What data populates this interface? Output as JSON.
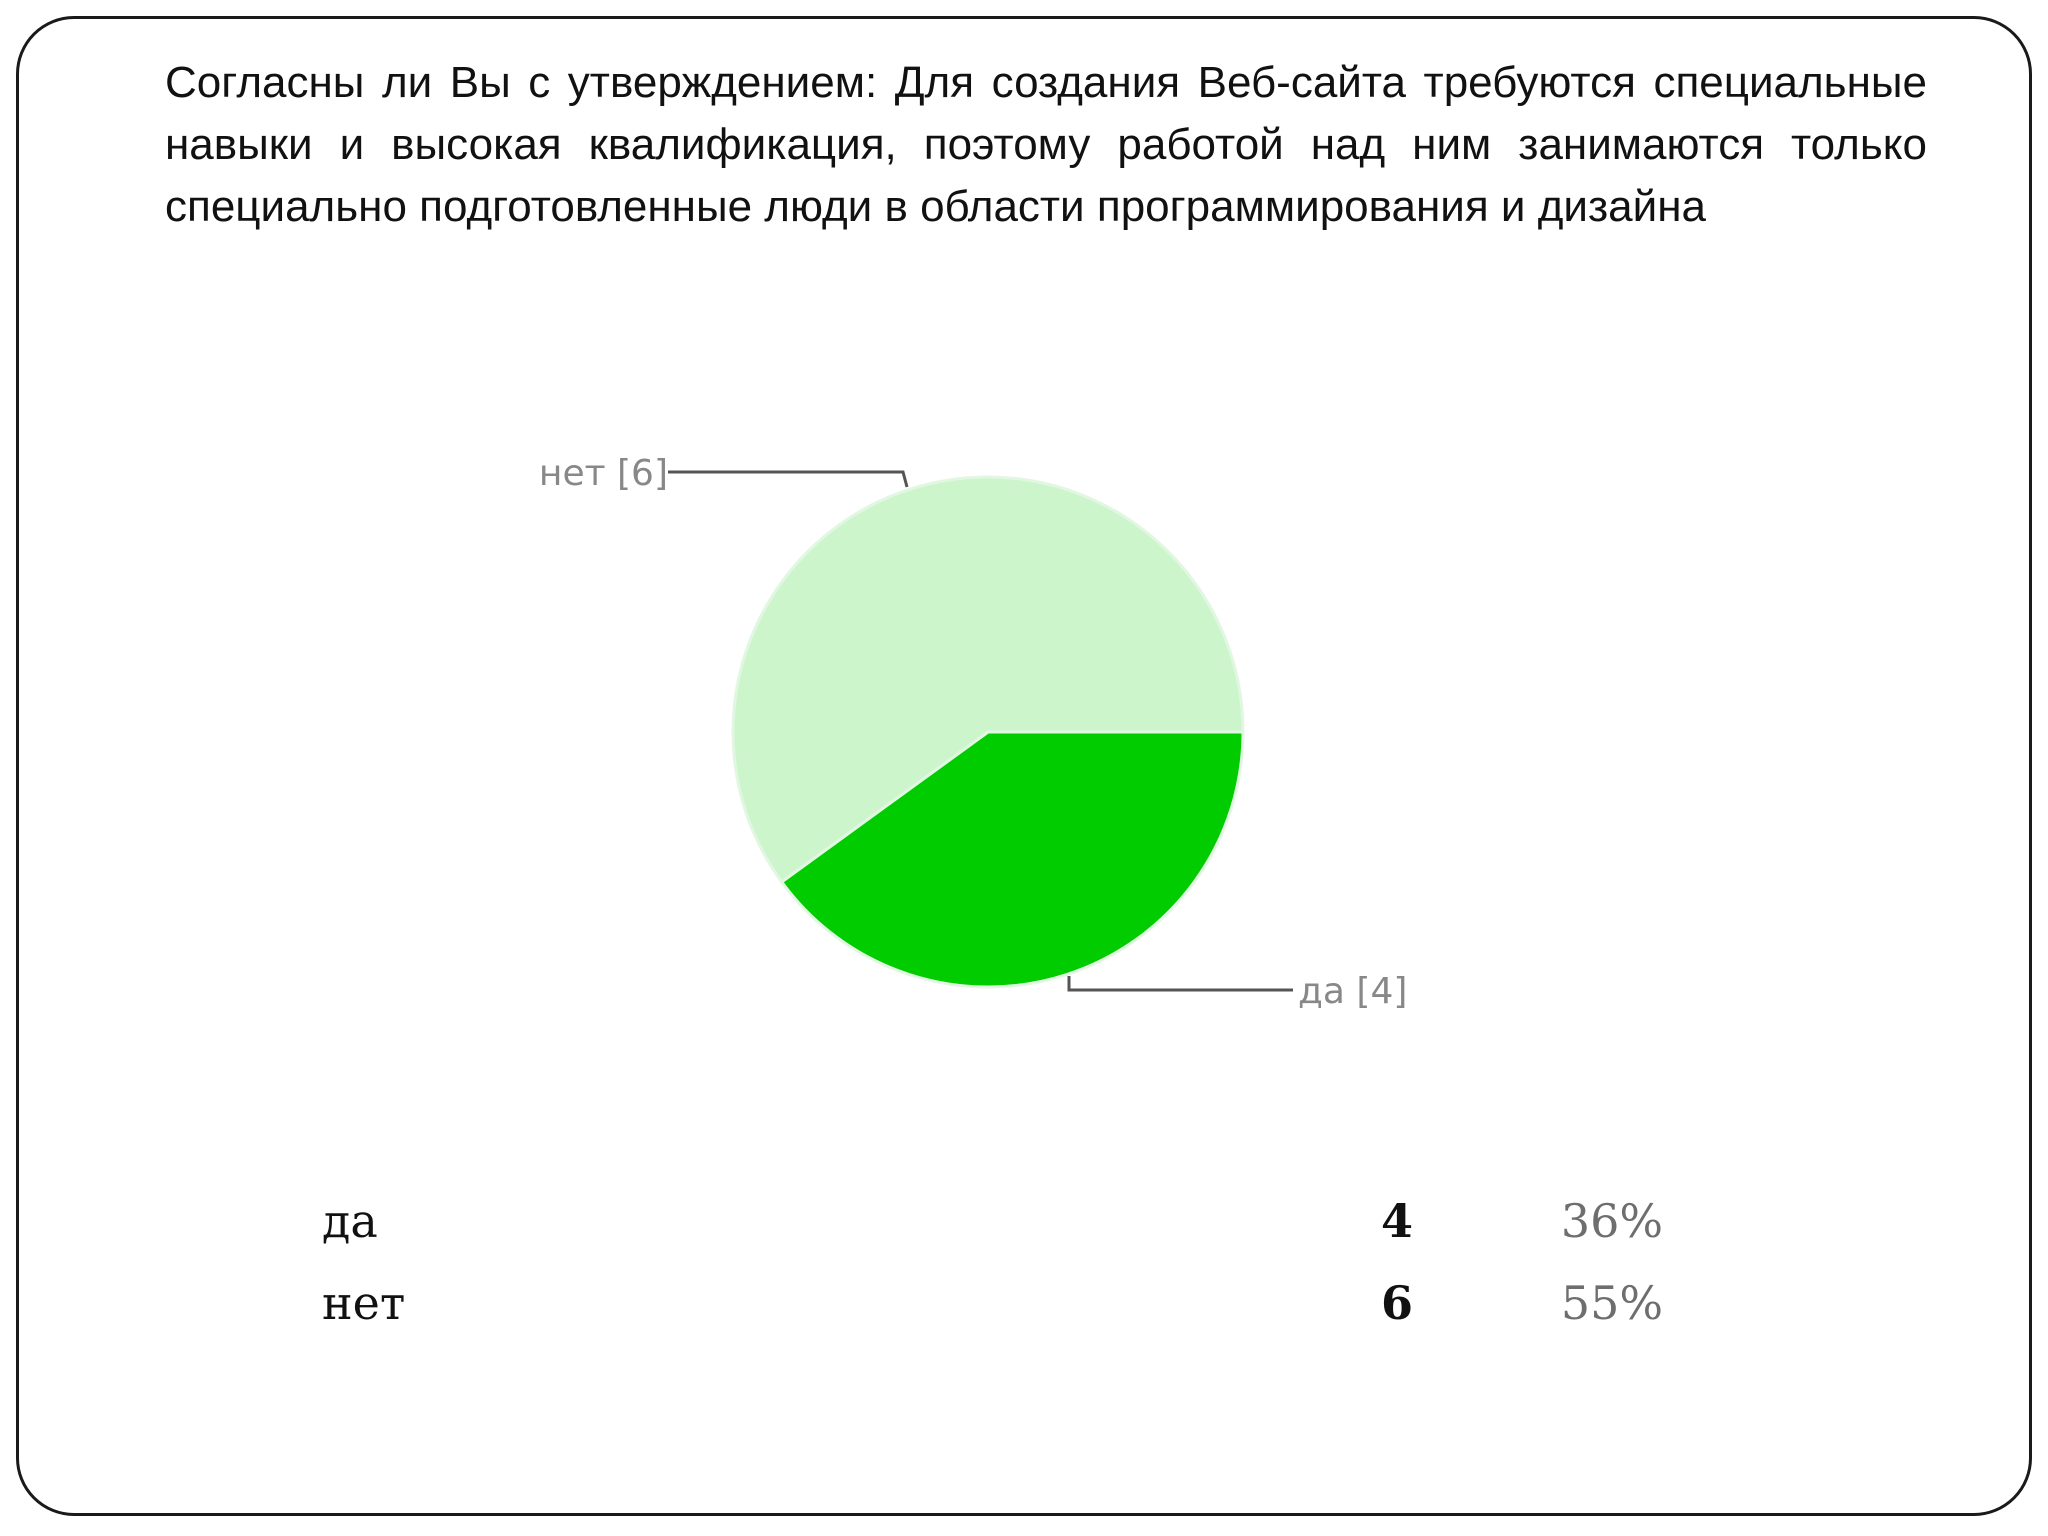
{
  "slide": {
    "title": "Согласны ли Вы с утверждением: Для создания Веб-сайта требуются специальные навыки и высокая квалификация, поэтому работой над ним занимаются только специально подготовленные люди в области программирования и дизайна"
  },
  "chart_data": {
    "type": "pie",
    "categories": [
      "да",
      "нет"
    ],
    "values": [
      4,
      6
    ],
    "slice_labels": [
      "да [4]",
      "нет [6]"
    ],
    "colors": [
      "#00cc00",
      "#ccf5cc"
    ],
    "outline_color": "#e2f7e2"
  },
  "results_table": {
    "rows": [
      {
        "label": "да",
        "count": "4",
        "percent": "36%"
      },
      {
        "label": "нет",
        "count": "6",
        "percent": "55%"
      }
    ]
  }
}
